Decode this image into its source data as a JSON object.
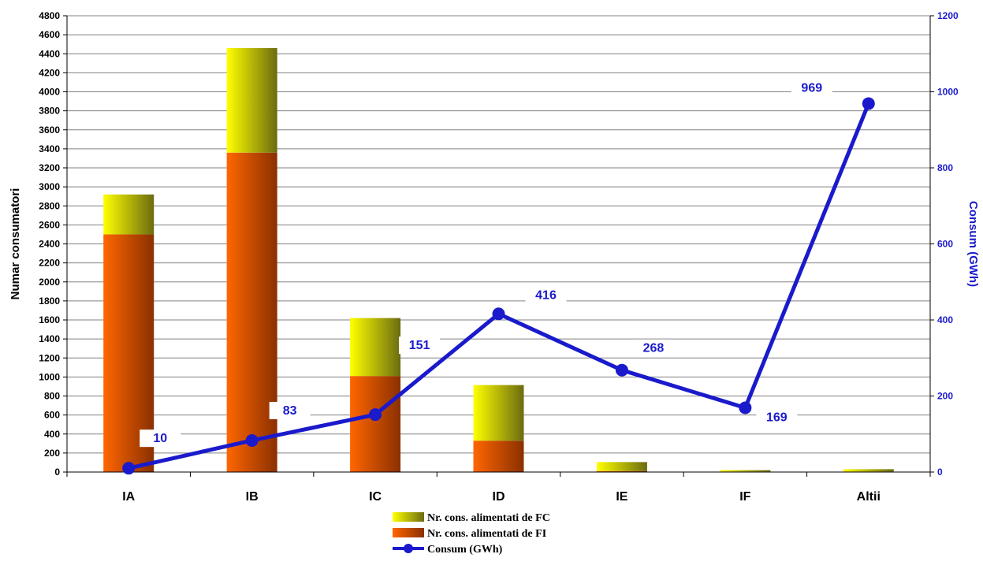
{
  "chart_data": {
    "type": "bar",
    "stacked": true,
    "categories": [
      "IA",
      "IB",
      "IC",
      "ID",
      "IE",
      "IF",
      "Altii"
    ],
    "series": [
      {
        "name": "Nr. cons. alimentati de FI",
        "type": "bar",
        "axis": "left",
        "values": [
          2500,
          3360,
          1010,
          330,
          10,
          5,
          5
        ],
        "color": "#ff6600",
        "color_dark": "#8a3000"
      },
      {
        "name": "Nr. cons. alimentati de FC",
        "type": "bar",
        "axis": "left",
        "values": [
          420,
          1100,
          610,
          585,
          95,
          15,
          25
        ],
        "color": "#ffff00",
        "color_dark": "#6b6b10"
      },
      {
        "name": "Consum (GWh)",
        "type": "line",
        "axis": "right",
        "values": [
          10,
          83,
          151,
          416,
          268,
          169,
          969
        ],
        "color": "#1a1acc"
      }
    ],
    "data_labels": [
      "10",
      "83",
      "151",
      "416",
      "268",
      "169",
      "969"
    ],
    "ylabel": "Numar consumatori",
    "ylabel_right": "Consum (GWh)",
    "ylim": [
      0,
      4800
    ],
    "ystep": 200,
    "ylim_right": [
      0,
      1200
    ],
    "ystep_right": 200,
    "grid": true,
    "legend_position": "bottom",
    "legend_order": [
      "Nr. cons. alimentati de FC",
      "Nr. cons. alimentati de FI",
      "Consum (GWh)"
    ]
  }
}
